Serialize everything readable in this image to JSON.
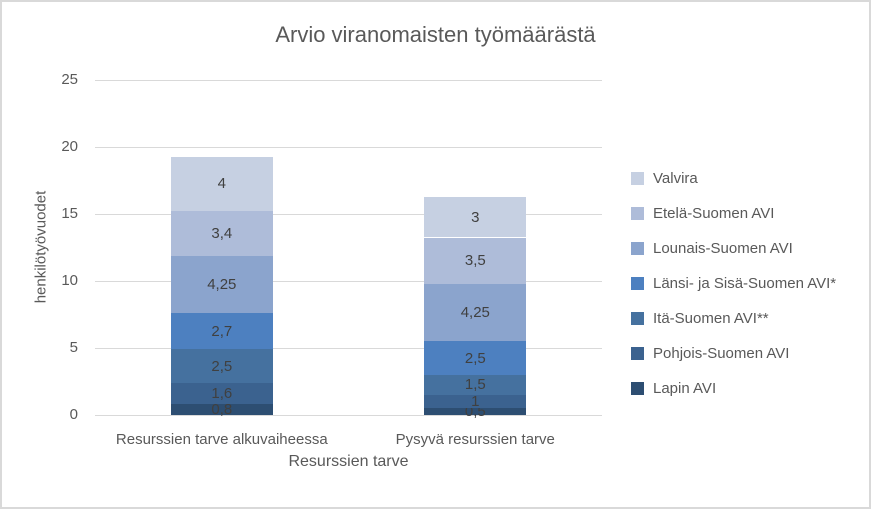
{
  "chart_data": {
    "type": "bar",
    "stacked": true,
    "title": "Arvio viranomaisten työmäärästä",
    "ylabel": "henkilötyövuodet",
    "xlabel": "Resurssien tarve",
    "categories": [
      "Resurssien tarve alkuvaiheessa",
      "Pysyvä resurssien tarve"
    ],
    "series": [
      {
        "name": "Lapin AVI",
        "color": "#2d4e72",
        "values": [
          0.8,
          0.5
        ],
        "labels": [
          "0,8",
          "0,5"
        ]
      },
      {
        "name": "Pohjois-Suomen AVI",
        "color": "#3b628f",
        "values": [
          1.6,
          1.0
        ],
        "labels": [
          "1,6",
          "1"
        ]
      },
      {
        "name": "Itä-Suomen AVI**",
        "color": "#45719f",
        "values": [
          2.5,
          1.5
        ],
        "labels": [
          "2,5",
          "1,5"
        ]
      },
      {
        "name": "Länsi- ja Sisä-Suomen AVI*",
        "color": "#4d80c0",
        "values": [
          2.7,
          2.5
        ],
        "labels": [
          "2,7",
          "2,5"
        ]
      },
      {
        "name": "Lounais-Suomen AVI",
        "color": "#8ba4cd",
        "values": [
          4.25,
          4.25
        ],
        "labels": [
          "4,25",
          "4,25"
        ]
      },
      {
        "name": "Etelä-Suomen AVI",
        "color": "#aebcd9",
        "values": [
          3.4,
          3.5
        ],
        "labels": [
          "3,4",
          "3,5"
        ]
      },
      {
        "name": "Valvira",
        "color": "#c6d0e2",
        "values": [
          4.0,
          3.0
        ],
        "labels": [
          "4",
          "3"
        ]
      }
    ],
    "legend": {
      "position": "right",
      "entries": [
        "Valvira",
        "Etelä-Suomen AVI",
        "Lounais-Suomen AVI",
        "Länsi- ja Sisä-Suomen AVI*",
        "Itä-Suomen AVI**",
        "Pohjois-Suomen AVI",
        "Lapin AVI"
      ]
    },
    "yticks": [
      0,
      5,
      10,
      15,
      20,
      25
    ],
    "ylim": [
      0,
      25
    ],
    "grid": true,
    "colors": {
      "gridline": "#d9d9d9",
      "title_text": "#595959",
      "axis_text": "#595959",
      "data_label_text": "#404040"
    }
  }
}
